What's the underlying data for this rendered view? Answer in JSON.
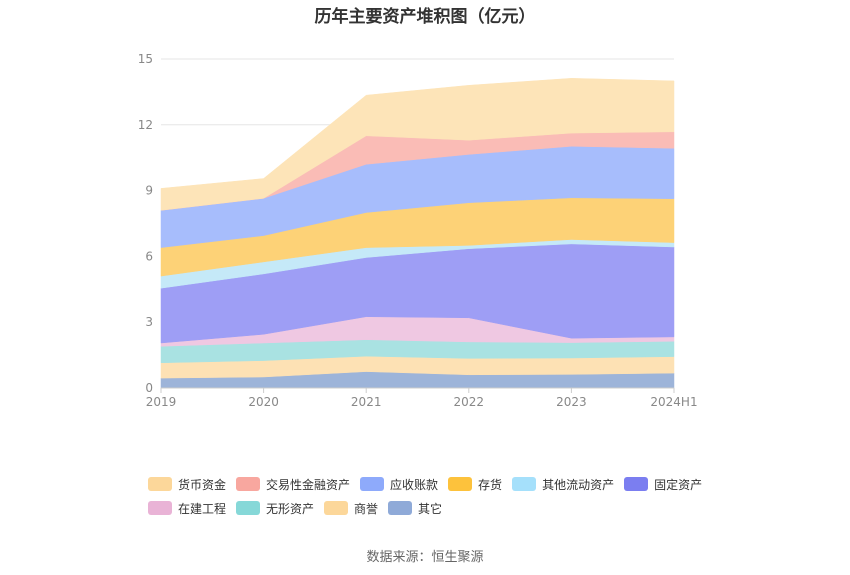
{
  "title": "历年主要资产堆积图（亿元）",
  "source": "数据来源：恒生聚源",
  "chart_data": {
    "type": "area",
    "stacked": true,
    "categories": [
      "2019",
      "2020",
      "2021",
      "2022",
      "2023",
      "2024H1"
    ],
    "yticks": [
      "0",
      "3",
      "6",
      "9",
      "12",
      "15"
    ],
    "ylim": [
      0,
      15
    ],
    "grid": true,
    "legend_position": "bottom",
    "series": [
      {
        "name": "其它",
        "color": "#9db4d9",
        "values": [
          0.45,
          0.5,
          0.75,
          0.6,
          0.62,
          0.68
        ]
      },
      {
        "name": "商誉",
        "color": "#fde1b4",
        "values": [
          0.7,
          0.75,
          0.7,
          0.75,
          0.75,
          0.75
        ]
      },
      {
        "name": "无形资产",
        "color": "#a9e2e2",
        "values": [
          0.75,
          0.8,
          0.75,
          0.75,
          0.7,
          0.7
        ]
      },
      {
        "name": "在建工程",
        "color": "#efc8e2",
        "values": [
          0.15,
          0.4,
          1.05,
          1.1,
          0.2,
          0.2
        ]
      },
      {
        "name": "固定资产",
        "color": "#9e9ef5",
        "values": [
          2.5,
          2.75,
          2.7,
          3.15,
          4.3,
          4.1
        ]
      },
      {
        "name": "其他流动资产",
        "color": "#c5e9f8",
        "values": [
          0.55,
          0.55,
          0.45,
          0.15,
          0.2,
          0.2
        ]
      },
      {
        "name": "存货",
        "color": "#fdd277",
        "values": [
          1.3,
          1.2,
          1.6,
          1.95,
          1.9,
          2.0
        ]
      },
      {
        "name": "应收账款",
        "color": "#a7bdfc",
        "values": [
          1.7,
          1.7,
          2.2,
          2.2,
          2.35,
          2.3
        ]
      },
      {
        "name": "交易性金融资产",
        "color": "#fabcb6",
        "values": [
          0.0,
          0.0,
          1.3,
          0.65,
          0.6,
          0.75
        ]
      },
      {
        "name": "货币资金",
        "color": "#fde4b8",
        "values": [
          1.0,
          0.9,
          1.85,
          2.5,
          2.5,
          2.32
        ]
      }
    ]
  },
  "legend": {
    "row1": [
      {
        "label": "货币资金",
        "color": "#fcd79a"
      },
      {
        "label": "交易性金融资产",
        "color": "#f8a79f"
      },
      {
        "label": "应收账款",
        "color": "#8eaafb"
      },
      {
        "label": "存货",
        "color": "#fdc23c"
      },
      {
        "label": "其他流动资产",
        "color": "#a5e0fb"
      },
      {
        "label": "固定资产",
        "color": "#7b7ef0"
      }
    ],
    "row2": [
      {
        "label": "在建工程",
        "color": "#e9b3d6"
      },
      {
        "label": "无形资产",
        "color": "#86d8d8"
      },
      {
        "label": "商誉",
        "color": "#fcd79a"
      },
      {
        "label": "其它",
        "color": "#8faad8"
      }
    ]
  }
}
